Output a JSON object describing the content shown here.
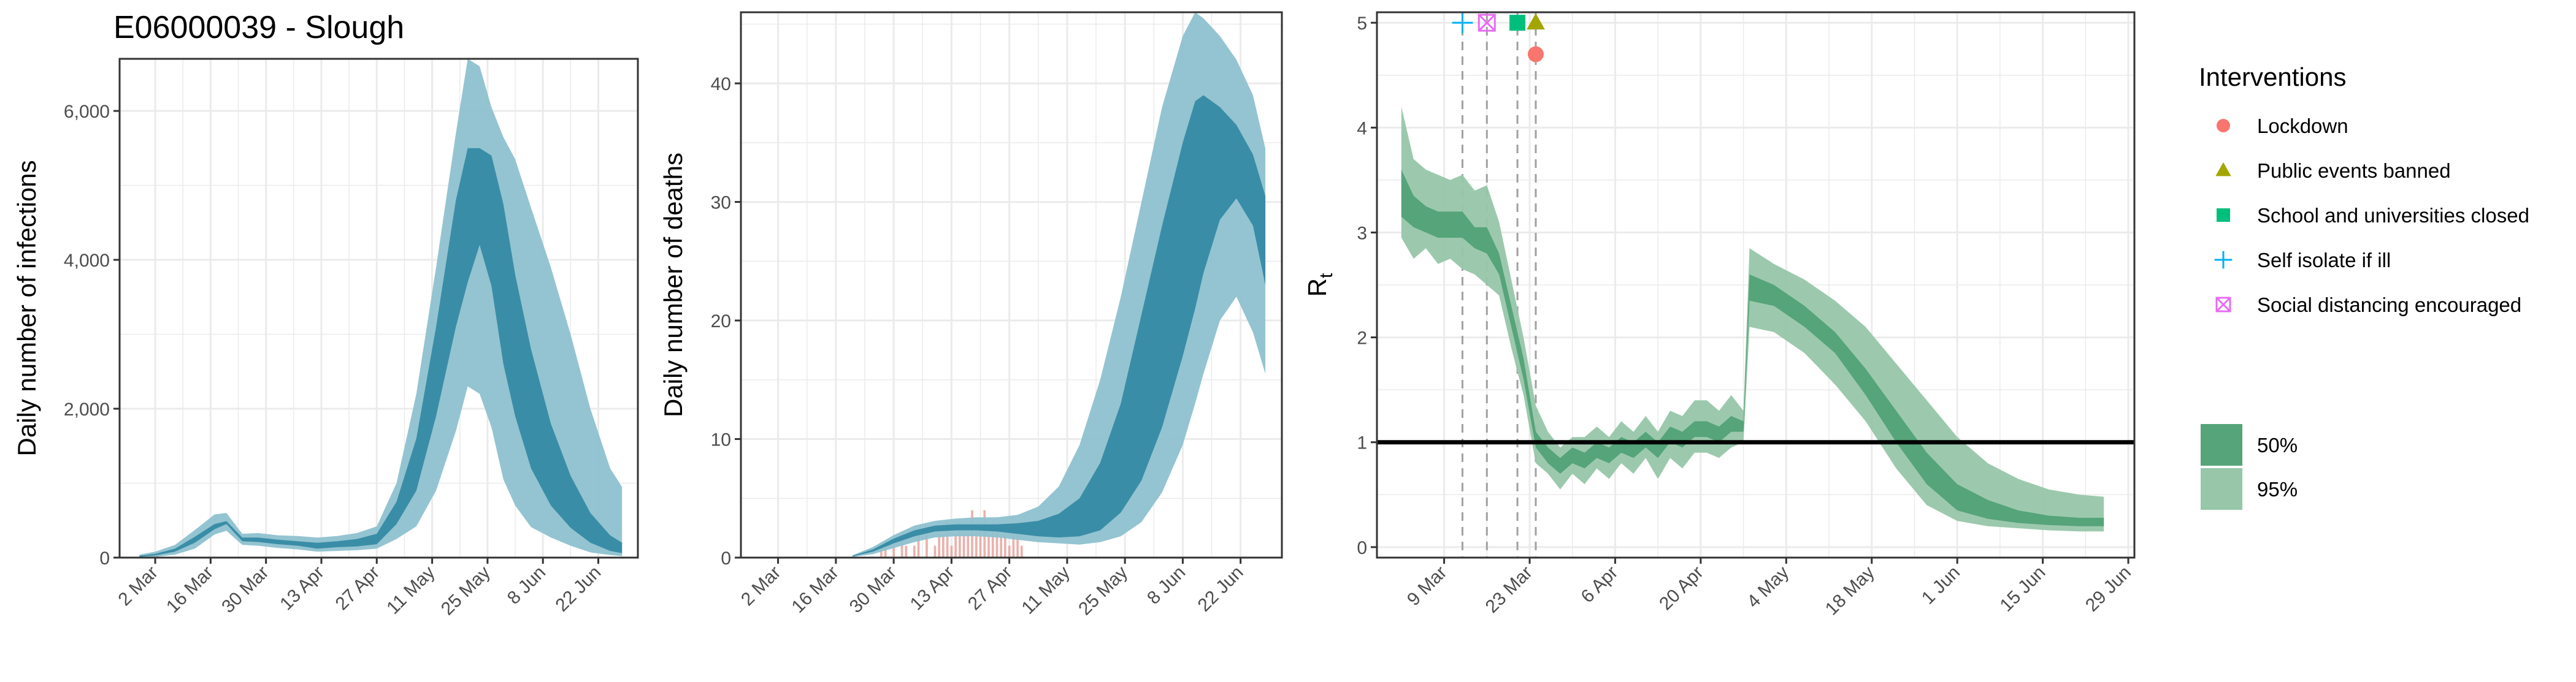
{
  "colors": {
    "infection_band_95": "#8ec1cf",
    "infection_band_50": "#3a8da7",
    "rt_band_95": "#97c6a9",
    "rt_band_50": "#56a479",
    "observed_bars": "#e8a39c",
    "grid": "#ebebeb",
    "panel_border": "#333333",
    "tick_text": "#4d4d4d",
    "intervention_lockdown": "#f8766d",
    "intervention_public_events": "#a3a500",
    "intervention_school": "#00bf7d",
    "intervention_self_isolate": "#00b0f6",
    "intervention_social_distancing": "#e76bf3"
  },
  "chart_data": [
    {
      "type": "area",
      "title": "E06000039 - Slough",
      "xlabel": "",
      "ylabel": "Daily number of infections",
      "x_tick_labels": [
        "2 Mar",
        "16 Mar",
        "30 Mar",
        "13 Apr",
        "27 Apr",
        "11 May",
        "25 May",
        "8 Jun",
        "22 Jun"
      ],
      "y_tick_labels": [
        "0",
        "2,000",
        "4,000",
        "6,000"
      ],
      "ylim": [
        0,
        6700
      ],
      "xlim": [
        "2020-02-22",
        "2020-07-02"
      ],
      "x": [
        "2020-02-27",
        "2020-03-02",
        "2020-03-07",
        "2020-03-12",
        "2020-03-17",
        "2020-03-20",
        "2020-03-24",
        "2020-03-28",
        "2020-04-02",
        "2020-04-07",
        "2020-04-12",
        "2020-04-17",
        "2020-04-22",
        "2020-04-27",
        "2020-05-02",
        "2020-05-07",
        "2020-05-12",
        "2020-05-17",
        "2020-05-20",
        "2020-05-23",
        "2020-05-26",
        "2020-05-29",
        "2020-06-01",
        "2020-06-05",
        "2020-06-10",
        "2020-06-15",
        "2020-06-20",
        "2020-06-25",
        "2020-06-28"
      ],
      "series": [
        {
          "lower": [
            0,
            10,
            40,
            120,
            310,
            360,
            170,
            160,
            130,
            110,
            80,
            90,
            100,
            120,
            250,
            420,
            900,
            1700,
            2300,
            2200,
            1750,
            1050,
            700,
            410,
            270,
            160,
            70,
            35,
            20
          ],
          "upper": [
            40,
            80,
            170,
            370,
            580,
            600,
            320,
            330,
            300,
            290,
            270,
            290,
            330,
            420,
            1000,
            2200,
            3900,
            5700,
            6700,
            6600,
            6050,
            5650,
            5350,
            4700,
            3900,
            3000,
            2000,
            1200,
            950
          ]
        },
        {
          "lower": [
            10,
            30,
            80,
            200,
            380,
            450,
            220,
            210,
            180,
            160,
            120,
            140,
            150,
            180,
            450,
            900,
            1900,
            3100,
            3700,
            4200,
            3650,
            2600,
            1900,
            1200,
            700,
            400,
            200,
            90,
            60
          ],
          "upper": [
            25,
            50,
            120,
            280,
            450,
            490,
            270,
            270,
            240,
            220,
            200,
            220,
            250,
            320,
            750,
            1600,
            3100,
            4800,
            5500,
            5500,
            5400,
            4750,
            3800,
            2800,
            1800,
            1100,
            600,
            300,
            200
          ]
        }
      ]
    },
    {
      "type": "area",
      "xlabel": "",
      "ylabel": "Daily number of deaths",
      "x_tick_labels": [
        "2 Mar",
        "16 Mar",
        "30 Mar",
        "13 Apr",
        "27 Apr",
        "11 May",
        "25 May",
        "8 Jun",
        "22 Jun"
      ],
      "y_tick_labels": [
        "0",
        "10",
        "20",
        "30",
        "40"
      ],
      "ylim": [
        0,
        46
      ],
      "xlim": [
        "2020-02-22",
        "2020-07-02"
      ],
      "x": [
        "2020-03-20",
        "2020-03-25",
        "2020-03-30",
        "2020-04-04",
        "2020-04-09",
        "2020-04-14",
        "2020-04-19",
        "2020-04-24",
        "2020-04-29",
        "2020-05-04",
        "2020-05-09",
        "2020-05-14",
        "2020-05-19",
        "2020-05-24",
        "2020-05-29",
        "2020-06-03",
        "2020-06-08",
        "2020-06-11",
        "2020-06-13",
        "2020-06-17",
        "2020-06-21",
        "2020-06-25",
        "2020-06-28"
      ],
      "series": [
        {
          "lower": [
            0.05,
            0.3,
            0.8,
            1.3,
            1.7,
            1.8,
            1.8,
            1.7,
            1.5,
            1.3,
            1.2,
            1.1,
            1.3,
            1.8,
            3.0,
            5.5,
            9.5,
            13.0,
            15.5,
            20.0,
            22.0,
            19.0,
            15.5
          ],
          "upper": [
            0.2,
            0.9,
            1.9,
            2.7,
            3.1,
            3.3,
            3.4,
            3.4,
            3.6,
            4.3,
            6.0,
            9.5,
            15.0,
            22.0,
            30.0,
            38.0,
            44.0,
            46.0,
            45.5,
            44.0,
            42.0,
            39.0,
            34.5
          ]
        },
        {
          "lower": [
            0.1,
            0.5,
            1.2,
            1.8,
            2.2,
            2.3,
            2.3,
            2.2,
            2.0,
            1.8,
            1.7,
            1.8,
            2.3,
            3.8,
            6.5,
            11.0,
            17.0,
            21.0,
            24.0,
            28.5,
            30.3,
            28.0,
            23.0
          ],
          "upper": [
            0.15,
            0.7,
            1.6,
            2.3,
            2.7,
            2.8,
            2.8,
            2.8,
            2.9,
            3.1,
            3.7,
            5.0,
            8.0,
            13.0,
            20.5,
            28.0,
            35.0,
            38.5,
            39.0,
            38.0,
            36.5,
            34.0,
            30.5
          ]
        }
      ],
      "observed_dates": [
        "2020-03-27",
        "2020-03-28",
        "2020-03-30",
        "2020-04-01",
        "2020-04-02",
        "2020-04-04",
        "2020-04-05",
        "2020-04-07",
        "2020-04-09",
        "2020-04-10",
        "2020-04-11",
        "2020-04-12",
        "2020-04-13",
        "2020-04-14",
        "2020-04-15",
        "2020-04-16",
        "2020-04-17",
        "2020-04-18",
        "2020-04-19",
        "2020-04-20",
        "2020-04-21",
        "2020-04-22",
        "2020-04-23",
        "2020-04-24",
        "2020-04-25",
        "2020-04-26",
        "2020-04-27",
        "2020-04-28",
        "2020-04-29",
        "2020-04-30"
      ],
      "observed_values": [
        1,
        1,
        1,
        2,
        1,
        1,
        2,
        2,
        1,
        2,
        2,
        3,
        1,
        2,
        3,
        2,
        2,
        4,
        3,
        3,
        4,
        2,
        3,
        3,
        2,
        2,
        1,
        2,
        2,
        1
      ]
    },
    {
      "type": "area",
      "xlabel": "",
      "ylabel": "R",
      "ylabel_subscript": "t",
      "x_tick_labels": [
        "9 Mar",
        "23 Mar",
        "6 Apr",
        "20 Apr",
        "4 May",
        "18 May",
        "1 Jun",
        "15 Jun",
        "29 Jun"
      ],
      "y_tick_labels": [
        "0",
        "1",
        "2",
        "3",
        "4",
        "5"
      ],
      "ylim": [
        -0.1,
        5.1
      ],
      "xlim": [
        "2020-02-27",
        "2020-06-30"
      ],
      "reference_line": 1,
      "intervention_lines": [
        "2020-03-12",
        "2020-03-16",
        "2020-03-21",
        "2020-03-24"
      ],
      "x": [
        "2020-03-02",
        "2020-03-04",
        "2020-03-06",
        "2020-03-08",
        "2020-03-10",
        "2020-03-12",
        "2020-03-14",
        "2020-03-16",
        "2020-03-18",
        "2020-03-20",
        "2020-03-22",
        "2020-03-24",
        "2020-03-26",
        "2020-03-28",
        "2020-03-30",
        "2020-04-01",
        "2020-04-03",
        "2020-04-05",
        "2020-04-07",
        "2020-04-09",
        "2020-04-11",
        "2020-04-13",
        "2020-04-15",
        "2020-04-17",
        "2020-04-19",
        "2020-04-21",
        "2020-04-23",
        "2020-04-25",
        "2020-04-27",
        "2020-04-28",
        "2020-05-02",
        "2020-05-07",
        "2020-05-12",
        "2020-05-17",
        "2020-05-22",
        "2020-05-27",
        "2020-06-01",
        "2020-06-06",
        "2020-06-11",
        "2020-06-16",
        "2020-06-21",
        "2020-06-25"
      ],
      "series": [
        {
          "lower": [
            2.95,
            2.75,
            2.85,
            2.7,
            2.75,
            2.65,
            2.6,
            2.5,
            2.4,
            1.9,
            1.45,
            0.8,
            0.7,
            0.55,
            0.7,
            0.6,
            0.75,
            0.65,
            0.8,
            0.7,
            0.85,
            0.65,
            0.85,
            0.75,
            0.9,
            0.9,
            0.85,
            0.95,
            1.0,
            2.1,
            2.05,
            1.85,
            1.55,
            1.2,
            0.75,
            0.4,
            0.25,
            0.2,
            0.18,
            0.16,
            0.15,
            0.15
          ],
          "upper": [
            4.2,
            3.7,
            3.6,
            3.55,
            3.5,
            3.55,
            3.4,
            3.45,
            3.1,
            2.55,
            2.0,
            1.35,
            1.1,
            0.95,
            1.05,
            1.05,
            1.15,
            1.05,
            1.2,
            1.1,
            1.25,
            1.1,
            1.3,
            1.25,
            1.4,
            1.4,
            1.3,
            1.45,
            1.3,
            2.85,
            2.7,
            2.55,
            2.35,
            2.1,
            1.75,
            1.4,
            1.05,
            0.8,
            0.65,
            0.55,
            0.5,
            0.48
          ]
        },
        {
          "lower": [
            3.15,
            3.05,
            3.0,
            2.95,
            2.95,
            2.95,
            2.85,
            2.8,
            2.6,
            2.1,
            1.6,
            0.95,
            0.8,
            0.7,
            0.8,
            0.75,
            0.85,
            0.8,
            0.9,
            0.85,
            0.95,
            0.85,
            1.0,
            0.95,
            1.05,
            1.05,
            1.0,
            1.1,
            1.1,
            2.35,
            2.3,
            2.1,
            1.85,
            1.45,
            1.0,
            0.6,
            0.35,
            0.27,
            0.23,
            0.21,
            0.2,
            0.2
          ],
          "upper": [
            3.6,
            3.35,
            3.25,
            3.2,
            3.2,
            3.2,
            3.05,
            3.05,
            2.8,
            2.3,
            1.8,
            1.1,
            0.95,
            0.85,
            0.95,
            0.9,
            1.0,
            0.95,
            1.05,
            1.0,
            1.1,
            1.0,
            1.15,
            1.1,
            1.2,
            1.2,
            1.15,
            1.25,
            1.2,
            2.6,
            2.5,
            2.3,
            2.05,
            1.7,
            1.3,
            0.9,
            0.6,
            0.45,
            0.35,
            0.3,
            0.28,
            0.28
          ]
        }
      ],
      "interventions": [
        {
          "label": "Lockdown",
          "date": "2020-03-24",
          "y": 4.7,
          "shape": "circle",
          "color": "#f8766d"
        },
        {
          "label": "Public events banned",
          "date": "2020-03-24",
          "y": 5.0,
          "shape": "triangle",
          "color": "#a3a500"
        },
        {
          "label": "School and universities closed",
          "date": "2020-03-21",
          "y": 5.0,
          "shape": "square",
          "color": "#00bf7d"
        },
        {
          "label": "Self isolate if ill",
          "date": "2020-03-12",
          "y": 5.0,
          "shape": "plus",
          "color": "#00b0f6"
        },
        {
          "label": "Social distancing encouraged",
          "date": "2020-03-16",
          "y": 5.0,
          "shape": "boxx",
          "color": "#e76bf3"
        }
      ]
    }
  ],
  "legend": {
    "interventions_title": "Interventions",
    "interventions": [
      {
        "label": "Lockdown",
        "shape": "circle",
        "color": "#f8766d"
      },
      {
        "label": "Public events banned",
        "shape": "triangle",
        "color": "#a3a500"
      },
      {
        "label": "School and universities closed",
        "shape": "square",
        "color": "#00bf7d"
      },
      {
        "label": "Self isolate if ill",
        "shape": "plus",
        "color": "#00b0f6"
      },
      {
        "label": "Social distancing encouraged",
        "shape": "boxx",
        "color": "#e76bf3"
      }
    ],
    "ci": [
      {
        "label": "50%",
        "color": "#56a479"
      },
      {
        "label": "95%",
        "color": "#97c6a9"
      }
    ]
  }
}
